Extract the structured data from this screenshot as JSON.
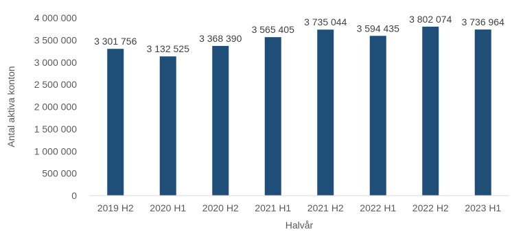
{
  "chart_data": {
    "type": "bar",
    "categories": [
      "2019 H2",
      "2020 H1",
      "2020 H2",
      "2021 H1",
      "2021 H2",
      "2022 H1",
      "2022 H2",
      "2023 H1"
    ],
    "values": [
      3301756,
      3132525,
      3368390,
      3565405,
      3735044,
      3594435,
      3802074,
      3736964
    ],
    "data_labels": [
      "3 301 756",
      "3 132 525",
      "3 368 390",
      "3 565 405",
      "3 735 044",
      "3 594 435",
      "3 802 074",
      "3 736 964"
    ],
    "y_ticks": [
      0,
      500000,
      1000000,
      1500000,
      2000000,
      2500000,
      3000000,
      3500000,
      4000000
    ],
    "y_tick_labels": [
      "0",
      "500 000",
      "1 000 000",
      "1 500 000",
      "2 000 000",
      "2 500 000",
      "3 000 000",
      "3 500 000",
      "4 000 000"
    ],
    "ylim": [
      0,
      4000000
    ],
    "xlabel": "Halvår",
    "ylabel": "Antal aktiva konton",
    "title": "",
    "grid": false,
    "legend": "none",
    "bar_color": "#1f4e79"
  }
}
